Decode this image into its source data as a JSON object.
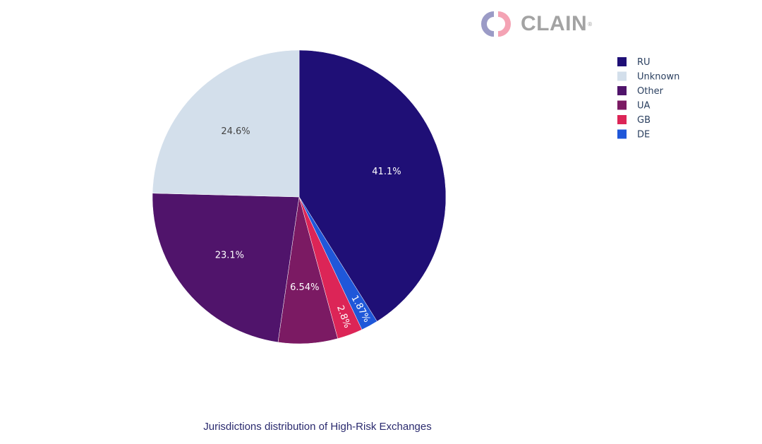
{
  "logo": {
    "text": "CLAIN",
    "mark": "®"
  },
  "chart_data": {
    "type": "pie",
    "title": "Jurisdictions distribution of High-Risk Exchanges",
    "direction": "clockwise",
    "start": "top",
    "legend_placement": "top-right",
    "slices": [
      {
        "label": "RU",
        "value": 41.1,
        "text": "41.1%",
        "color": "#1f0f76",
        "text_color": "#ffffff"
      },
      {
        "label": "DE",
        "value": 1.87,
        "text": "1.87%",
        "color": "#1f57d9",
        "text_color": "#ffffff"
      },
      {
        "label": "GB",
        "value": 2.8,
        "text": "2.8%",
        "color": "#dc2557",
        "text_color": "#ffffff"
      },
      {
        "label": "UA",
        "value": 6.54,
        "text": "6.54%",
        "color": "#7b1a63",
        "text_color": "#ffffff"
      },
      {
        "label": "Other",
        "value": 23.1,
        "text": "23.1%",
        "color": "#50146b",
        "text_color": "#ffffff"
      },
      {
        "label": "Unknown",
        "value": 24.6,
        "text": "24.6%",
        "color": "#d3dfeb",
        "text_color": "#444444"
      }
    ],
    "legend_order": [
      "RU",
      "Unknown",
      "Other",
      "UA",
      "GB",
      "DE"
    ]
  }
}
